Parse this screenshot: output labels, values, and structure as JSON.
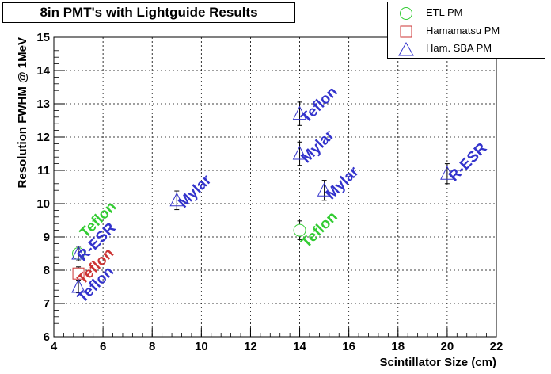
{
  "chart_data": {
    "type": "scatter",
    "title": "8in PMT's with Lightguide Results",
    "xlabel": "Scintillator Size (cm)",
    "ylabel": "Resolution FWHM @ 1MeV",
    "xlim": [
      4,
      22
    ],
    "ylim": [
      6,
      15
    ],
    "xticks": [
      "4",
      "6",
      "8",
      "10",
      "12",
      "14",
      "16",
      "18",
      "20",
      "22"
    ],
    "yticks": [
      "6",
      "7",
      "8",
      "9",
      "10",
      "11",
      "12",
      "13",
      "14",
      "15"
    ],
    "grid": true,
    "legend_position": "top-right",
    "series": [
      {
        "name": "ETL PM",
        "marker": "circle",
        "color": "#33cc33",
        "points": [
          {
            "x": 5,
            "y": 8.5,
            "err": 0.22
          },
          {
            "x": 14,
            "y": 9.2,
            "err": 0.28
          }
        ]
      },
      {
        "name": "Hamamatsu PM",
        "marker": "square",
        "color": "#cc3333",
        "points": [
          {
            "x": 5,
            "y": 7.9,
            "err": 0.2
          }
        ]
      },
      {
        "name": "Ham. SBA PM",
        "marker": "triangle",
        "color": "#3333cc",
        "points": [
          {
            "x": 5,
            "y": 8.5,
            "err": 0.22
          },
          {
            "x": 5,
            "y": 7.5,
            "err": 0.18
          },
          {
            "x": 9,
            "y": 10.1,
            "err": 0.28
          },
          {
            "x": 14,
            "y": 11.5,
            "err": 0.35
          },
          {
            "x": 14,
            "y": 12.7,
            "err": 0.35
          },
          {
            "x": 15,
            "y": 10.4,
            "err": 0.3
          },
          {
            "x": 20,
            "y": 10.9,
            "err": 0.3
          }
        ]
      }
    ],
    "annotations": [
      {
        "text": "Teflon",
        "x": 5.3,
        "y": 8.95,
        "color": "#33cc33"
      },
      {
        "text": "R-ESR",
        "x": 5.2,
        "y": 8.25,
        "color": "#3333cc"
      },
      {
        "text": "Teflon",
        "x": 5.2,
        "y": 7.55,
        "color": "#cc3333"
      },
      {
        "text": "Teflon",
        "x": 5.2,
        "y": 7.0,
        "color": "#3333cc"
      },
      {
        "text": "Mylar",
        "x": 9.3,
        "y": 9.85,
        "color": "#3333cc"
      },
      {
        "text": "Teflon",
        "x": 14.3,
        "y": 12.4,
        "color": "#3333cc"
      },
      {
        "text": "Mylar",
        "x": 14.3,
        "y": 11.2,
        "color": "#3333cc"
      },
      {
        "text": "Teflon",
        "x": 14.3,
        "y": 8.65,
        "color": "#33cc33"
      },
      {
        "text": "Mylar",
        "x": 15.3,
        "y": 10.1,
        "color": "#3333cc"
      },
      {
        "text": "R-ESR",
        "x": 20.3,
        "y": 10.65,
        "color": "#3333cc"
      }
    ]
  }
}
